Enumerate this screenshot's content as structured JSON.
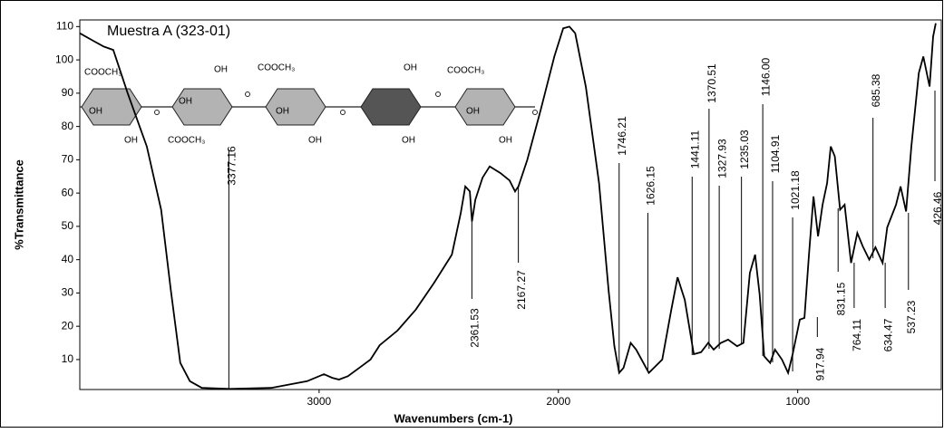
{
  "chart_data": {
    "type": "line",
    "title": "Muestra A (323-01)",
    "x_label": "Wavenumbers (cm-1)",
    "y_label": "%Transmittance",
    "xlim": [
      4000,
      400
    ],
    "ylim": [
      1,
      112
    ],
    "xticks": [
      3000,
      2000,
      1000
    ],
    "yticks": [
      10,
      20,
      30,
      40,
      50,
      60,
      70,
      80,
      90,
      100,
      110
    ],
    "color": "#000000",
    "x": [
      4000,
      3950,
      3900,
      3860,
      3800,
      3720,
      3660,
      3620,
      3580,
      3540,
      3490,
      3377,
      3200,
      3050,
      2980,
      2945,
      2917,
      2880,
      2823,
      2785,
      2747,
      2672,
      2596,
      2520,
      2445,
      2408,
      2389,
      2370,
      2361,
      2347,
      2317,
      2287,
      2242,
      2204,
      2181,
      2167,
      2130,
      2074,
      2017,
      1980,
      1954,
      1930,
      1885,
      1830,
      1790,
      1766,
      1746,
      1728,
      1698,
      1675,
      1622,
      1566,
      1528,
      1502,
      1472,
      1434,
      1404,
      1374,
      1351,
      1321,
      1291,
      1253,
      1227,
      1200,
      1178,
      1159,
      1140,
      1115,
      1095,
      1066,
      1040,
      1021,
      991,
      972,
      953,
      934,
      915,
      896,
      877,
      862,
      845,
      823,
      804,
      777,
      751,
      728,
      701,
      675,
      645,
      626,
      589,
      570,
      547,
      525,
      494,
      475,
      449,
      434,
      423
    ],
    "values": [
      108,
      106,
      104,
      103,
      90,
      74,
      55,
      31,
      9,
      3.5,
      1.5,
      1.2,
      1.5,
      3.5,
      5.6,
      4.5,
      4,
      5,
      8,
      10,
      14.3,
      18.7,
      25,
      33,
      41.5,
      54,
      62,
      60.5,
      51.5,
      58,
      64.6,
      68,
      66,
      63.8,
      60.5,
      62,
      70,
      85,
      101,
      109.5,
      110,
      108,
      91.8,
      63,
      30.6,
      14,
      6,
      7.5,
      15,
      13,
      6,
      10,
      25,
      34.7,
      28,
      11.6,
      12.2,
      15,
      13,
      15,
      16,
      14,
      15,
      36,
      41.5,
      29.5,
      11,
      9,
      13,
      10,
      6,
      11.6,
      22,
      22.5,
      41.5,
      59,
      47,
      56.5,
      63,
      74,
      71,
      55,
      56.5,
      39,
      48,
      44,
      40,
      43.7,
      39,
      49.7,
      56.5,
      62,
      54.5,
      74,
      96,
      101,
      92,
      107,
      111
    ],
    "peaks": [
      3377.16,
      2361.53,
      2167.27,
      1746.21,
      1626.15,
      1441.11,
      1370.51,
      1327.93,
      1235.03,
      {
        "value": 1146,
        "label": "1146.00"
      },
      1104.91,
      1021.18,
      917.94,
      831.15,
      764.11,
      685.38,
      634.47,
      537.23,
      426.46
    ],
    "structure_labels": [
      "COOCH₃",
      "OH",
      "OH",
      "OH",
      "OH",
      "COOCH₃",
      "COOCH₃",
      "OH",
      "OH",
      "OH",
      "OH",
      "COOCH₃",
      "OH",
      "OH"
    ]
  }
}
